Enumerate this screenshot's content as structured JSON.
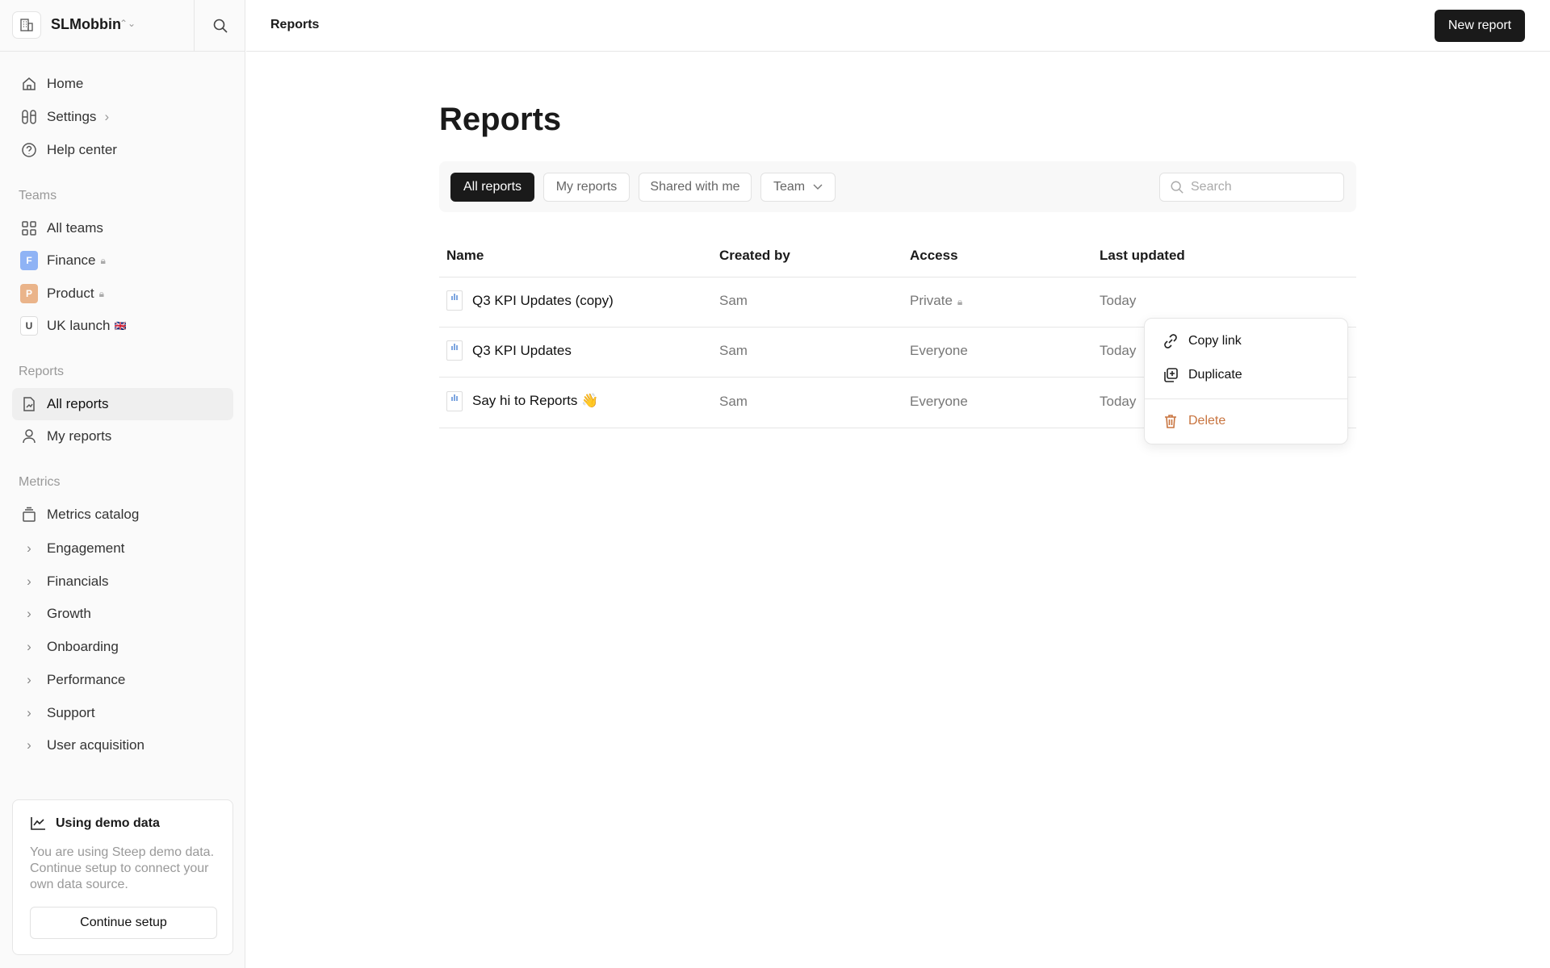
{
  "workspace": {
    "name": "SLMobbin",
    "icon": "building-icon"
  },
  "nav": [
    {
      "label": "Home",
      "icon": "home-icon"
    },
    {
      "label": "Settings",
      "icon": "settings-icon"
    },
    {
      "label": "Help center",
      "icon": "help-icon"
    }
  ],
  "teams": {
    "label": "Teams",
    "items": [
      {
        "label": "All teams",
        "icon": "grid-icon"
      },
      {
        "label": "Finance",
        "badge": "F",
        "color": "#8fb3f5",
        "locked": true
      },
      {
        "label": "Product",
        "badge": "P",
        "color": "#eab48a",
        "locked": true
      },
      {
        "label": "UK launch",
        "badge": "U",
        "flag": "🇬🇧"
      }
    ]
  },
  "reports_nav": {
    "label": "Reports",
    "items": [
      {
        "label": "All reports",
        "active": true
      },
      {
        "label": "My reports"
      }
    ]
  },
  "metrics": {
    "label": "Metrics",
    "catalog": "Metrics catalog",
    "items": [
      "Engagement",
      "Financials",
      "Growth",
      "Onboarding",
      "Performance",
      "Support",
      "User acquisition"
    ]
  },
  "demo": {
    "title": "Using demo data",
    "text": "You are using Steep demo data. Continue setup to connect your own data source.",
    "button": "Continue setup"
  },
  "topbar": {
    "breadcrumb": "Reports",
    "new_button": "New report"
  },
  "page": {
    "title": "Reports"
  },
  "filters": {
    "tabs": [
      "All reports",
      "My reports",
      "Shared with me",
      "Team"
    ],
    "active": "All reports",
    "search_placeholder": "Search"
  },
  "table": {
    "columns": [
      "Name",
      "Created by",
      "Access",
      "Last updated"
    ],
    "rows": [
      {
        "name": "Q3 KPI Updates (copy)",
        "created_by": "Sam",
        "access": "Private",
        "locked": true,
        "updated": "Today"
      },
      {
        "name": "Q3 KPI Updates",
        "created_by": "Sam",
        "access": "Everyone",
        "updated": "Today"
      },
      {
        "name": "Say hi to Reports 👋",
        "created_by": "Sam",
        "access": "Everyone",
        "updated": "Today"
      }
    ]
  },
  "context_menu": {
    "items": [
      {
        "label": "Copy link",
        "icon": "link-icon"
      },
      {
        "label": "Duplicate",
        "icon": "duplicate-icon"
      },
      {
        "label": "Delete",
        "icon": "trash-icon",
        "color": "#c8743f"
      }
    ]
  }
}
